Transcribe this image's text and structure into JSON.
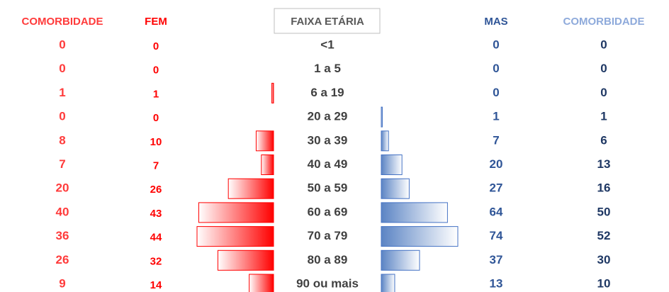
{
  "table": {
    "headers": [
      "COMORBIDADE",
      "FEM",
      "FAIXA ETÁRIA",
      "MAS",
      "COMORBIDADE"
    ],
    "rows": [
      {
        "comorbidade_fem": 0,
        "fem": 0,
        "faixa": "<1",
        "mas": 0,
        "comorbidade_mas": 0
      },
      {
        "comorbidade_fem": 0,
        "fem": 0,
        "faixa": "1 a 5",
        "mas": 0,
        "comorbidade_mas": 0
      },
      {
        "comorbidade_fem": 1,
        "fem": 1,
        "faixa": "6 a 19",
        "mas": 0,
        "comorbidade_mas": 0
      },
      {
        "comorbidade_fem": 0,
        "fem": 0,
        "faixa": "20 a 29",
        "mas": 1,
        "comorbidade_mas": 1
      },
      {
        "comorbidade_fem": 8,
        "fem": 10,
        "faixa": "30 a 39",
        "mas": 7,
        "comorbidade_mas": 6
      },
      {
        "comorbidade_fem": 7,
        "fem": 7,
        "faixa": "40 a 49",
        "mas": 20,
        "comorbidade_mas": 13
      },
      {
        "comorbidade_fem": 20,
        "fem": 26,
        "faixa": "50 a 59",
        "mas": 27,
        "comorbidade_mas": 16
      },
      {
        "comorbidade_fem": 40,
        "fem": 43,
        "faixa": "60 a 69",
        "mas": 64,
        "comorbidade_mas": 50
      },
      {
        "comorbidade_fem": 36,
        "fem": 44,
        "faixa": "70 a 79",
        "mas": 74,
        "comorbidade_mas": 52
      },
      {
        "comorbidade_fem": 26,
        "fem": 32,
        "faixa": "80 a 89",
        "mas": 37,
        "comorbidade_mas": 30
      },
      {
        "comorbidade_fem": 9,
        "fem": 14,
        "faixa": "90 ou mais",
        "mas": 13,
        "comorbidade_mas": 10
      }
    ]
  }
}
